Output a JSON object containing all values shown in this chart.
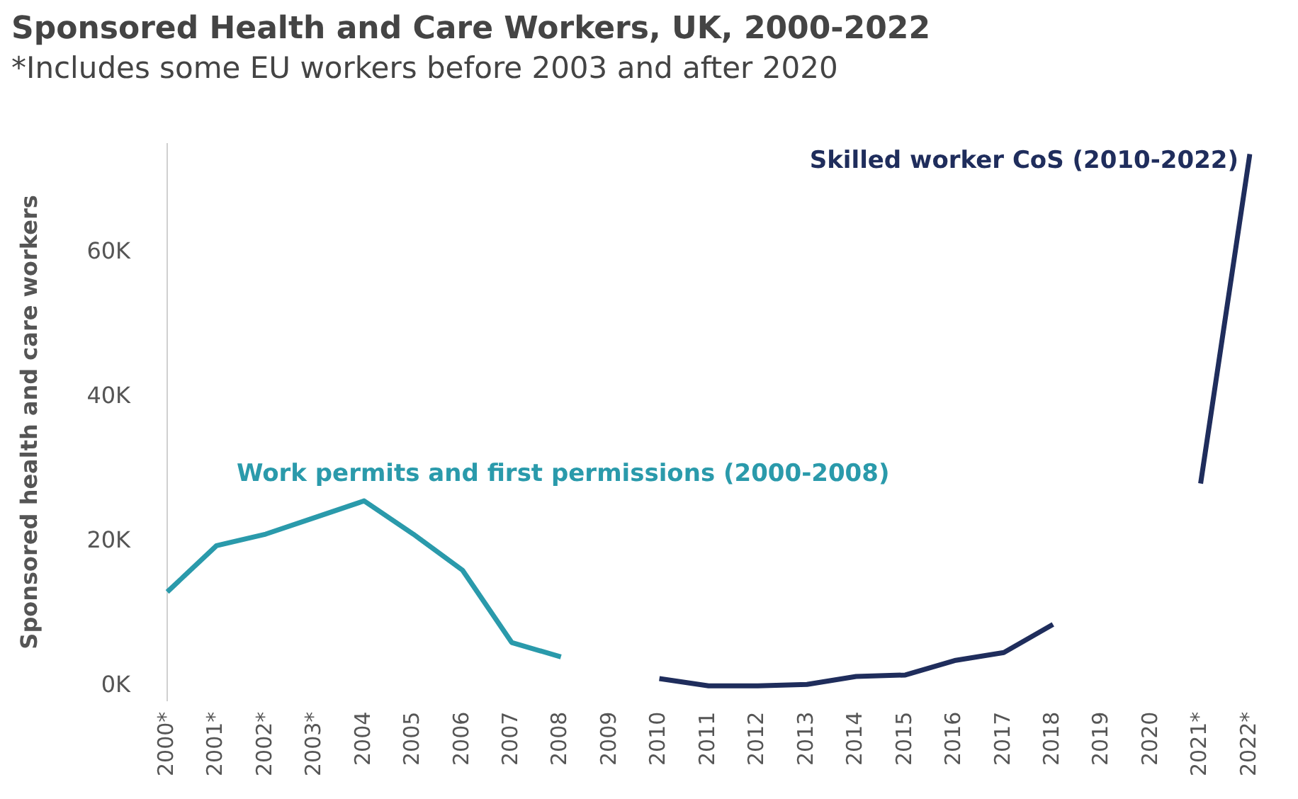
{
  "chart_data": {
    "type": "line",
    "title": "Sponsored Health and Care Workers, UK, 2000-2022",
    "subtitle": "*Includes some EU workers before 2003 and after 2020",
    "ylabel": "Sponsored health and care workers",
    "categories": [
      "2000*",
      "2001*",
      "2002*",
      "2003*",
      "2004",
      "2005",
      "2006",
      "2007",
      "2008",
      "2009",
      "2010",
      "2011",
      "2012",
      "2013",
      "2014",
      "2015",
      "2016",
      "2017",
      "2018",
      "2019",
      "2020",
      "2021*",
      "2022*"
    ],
    "series": [
      {
        "name": "Work permits and first permissions (2000-2008)",
        "color": "#2a9aab",
        "values": [
          13000,
          19400,
          21000,
          23300,
          25600,
          21000,
          16000,
          6000,
          4000,
          null,
          null,
          null,
          null,
          null,
          null,
          null,
          null,
          null,
          null,
          null,
          null,
          null,
          null
        ]
      },
      {
        "name": "Skilled worker CoS (2010-2022)",
        "color": "#1f2d5c",
        "values": [
          null,
          null,
          null,
          null,
          null,
          null,
          null,
          null,
          null,
          null,
          1000,
          0,
          0,
          200,
          1300,
          1500,
          3500,
          4600,
          8500,
          null,
          null,
          28000,
          73600
        ]
      }
    ],
    "ylim": [
      -2000,
      75000
    ],
    "yticks": [
      {
        "value": 0,
        "label": "0K"
      },
      {
        "value": 20000,
        "label": "20K"
      },
      {
        "value": 40000,
        "label": "40K"
      },
      {
        "value": 60000,
        "label": "60K"
      }
    ],
    "grid": false,
    "legend": false,
    "marker": "none",
    "line_style": "solid"
  }
}
